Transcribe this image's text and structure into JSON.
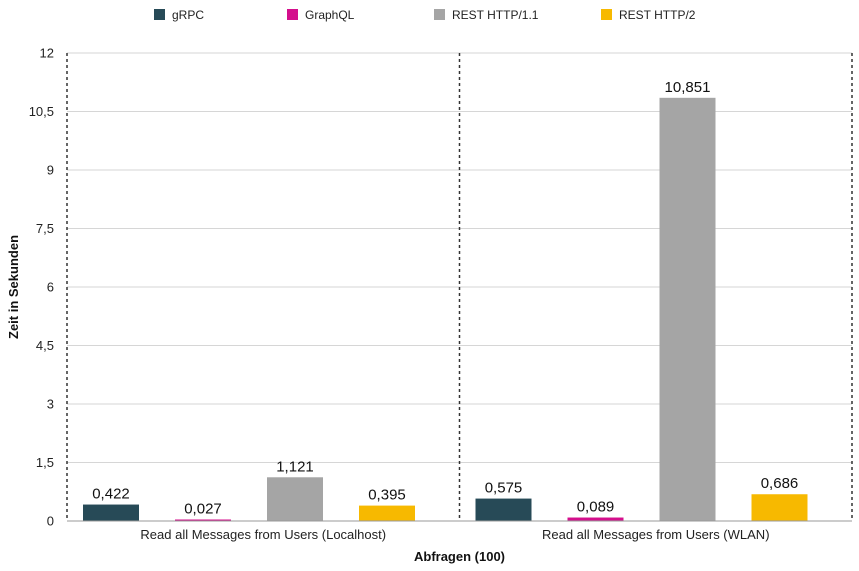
{
  "chart_data": {
    "type": "bar",
    "categories": [
      "Read all Messages from Users (Localhost)",
      "Read all Messages from Users (WLAN)"
    ],
    "series": [
      {
        "name": "gRPC",
        "color": "#274a57",
        "values": [
          0.422,
          0.575
        ],
        "labels": [
          "0,422",
          "0,575"
        ]
      },
      {
        "name": "GraphQL",
        "color": "#d40f8c",
        "values": [
          0.027,
          0.089
        ],
        "labels": [
          "0,027",
          "0,089"
        ]
      },
      {
        "name": "REST HTTP/1.1",
        "color": "#a5a5a5",
        "values": [
          1.121,
          10.851
        ],
        "labels": [
          "1,121",
          "10,851"
        ]
      },
      {
        "name": "REST HTTP/2",
        "color": "#f7b900",
        "values": [
          0.395,
          0.686
        ],
        "labels": [
          "0,395",
          "0,686"
        ]
      }
    ],
    "xlabel": "Abfragen (100)",
    "ylabel": "Zeit in Sekunden",
    "ylim": [
      0,
      12
    ],
    "yticks": [
      0,
      1.5,
      3,
      4.5,
      6,
      7.5,
      9,
      10.5,
      12
    ],
    "ytick_labels": [
      "0",
      "1,5",
      "3",
      "4,5",
      "6",
      "7,5",
      "9",
      "10,5",
      "12"
    ],
    "grid": true,
    "legend": "top-center"
  }
}
